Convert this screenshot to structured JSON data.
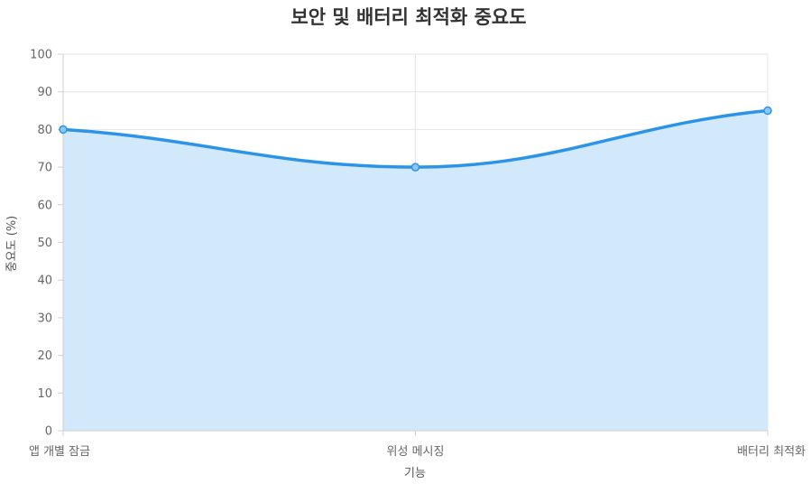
{
  "chart_data": {
    "type": "area",
    "title": "보안 및 배터리 최적화 중요도",
    "xlabel": "기능",
    "ylabel": "중요도 (%)",
    "categories": [
      "앱 개별 잠금",
      "위성 메시징",
      "배터리 최적화"
    ],
    "series": [
      {
        "values": [
          80,
          70,
          85
        ],
        "color": "#2b94e8",
        "fill": "#d2e8fb"
      }
    ],
    "ylim": [
      0,
      100
    ],
    "yticks": [
      0,
      10,
      20,
      30,
      40,
      50,
      60,
      70,
      80,
      90,
      100
    ],
    "grid": true,
    "legend": "none",
    "curve": "smooth"
  }
}
